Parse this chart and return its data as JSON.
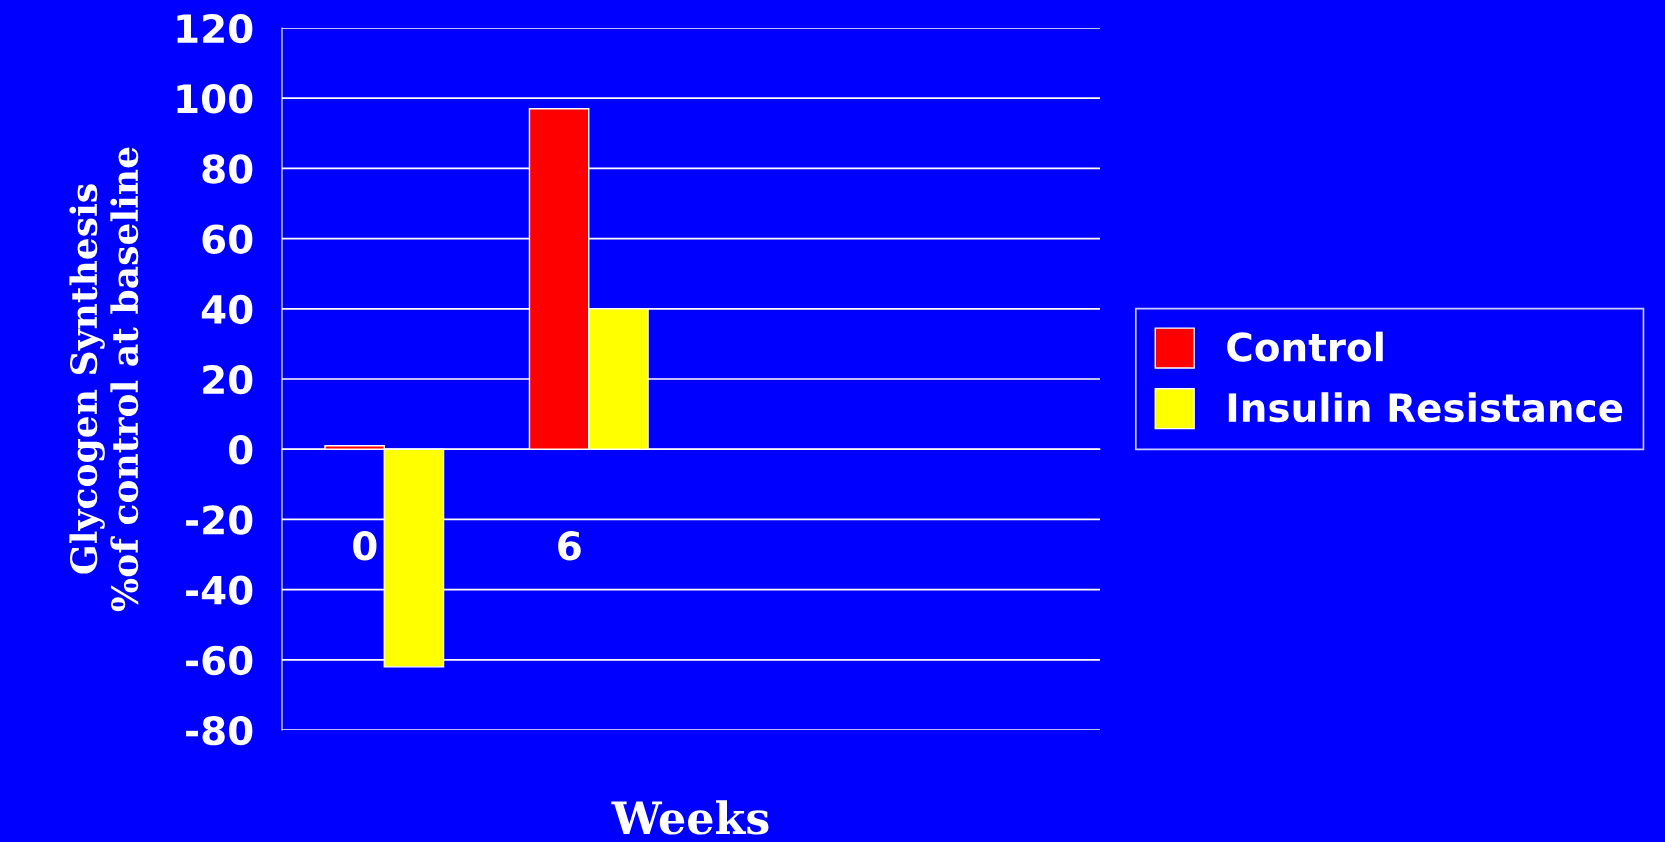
{
  "chart_data": {
    "type": "bar",
    "xlabel": "Weeks",
    "ylabel": "Glycogen Synthesis\n%of control at baseline",
    "categories": [
      "0",
      "6",
      null,
      null
    ],
    "series": [
      {
        "name": "Control",
        "color": "#ff0000",
        "values": [
          1,
          97,
          null,
          null
        ]
      },
      {
        "name": "Insulin Resistance",
        "color": "#ffff00",
        "values": [
          -62,
          40,
          null,
          null
        ]
      }
    ],
    "ylim": [
      -80,
      120
    ],
    "yticks": [
      -80,
      -60,
      -40,
      -20,
      0,
      20,
      40,
      60,
      80,
      100,
      120
    ],
    "grid": "y",
    "legend": "right"
  }
}
